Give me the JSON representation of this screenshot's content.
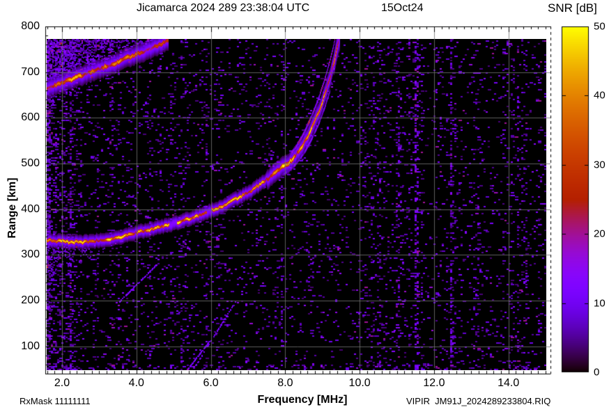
{
  "header": {
    "title_left": "Jicamarca 2024 289 23:38:04 UTC",
    "title_right": "15Oct24",
    "colorbar_title": "SNR [dB]"
  },
  "footer": {
    "rx_mask": "RxMask 11111111",
    "file_info": "VIPIR  JM91J_2024289233804.RIQ"
  },
  "axes": {
    "x": {
      "label": "Frequency [MHz]",
      "tick_labels": [
        "2.0",
        "4.0",
        "6.0",
        "8.0",
        "10.0",
        "12.0",
        "14.0"
      ],
      "tick_values": [
        2,
        4,
        6,
        8,
        10,
        12,
        14
      ],
      "minor_step": 0.2
    },
    "y": {
      "label": "Range [km]",
      "tick_labels": [
        "100",
        "200",
        "300",
        "400",
        "500",
        "600",
        "700",
        "800"
      ],
      "tick_values": [
        100,
        200,
        300,
        400,
        500,
        600,
        700,
        800
      ],
      "minor_step": 20
    }
  },
  "colorbar": {
    "tick_labels": [
      "0",
      "10",
      "20",
      "30",
      "40",
      "50"
    ],
    "tick_values": [
      0,
      10,
      20,
      30,
      40,
      50
    ],
    "min": 0,
    "max": 50,
    "palette_name": "gnuplot rgbformulae 7,5,15 (black-violet-red-orange-yellow)",
    "key_colors": {
      "0": "#000000",
      "10": "#7202f2",
      "20": "#a11096",
      "30": "#c63700",
      "40": "#e48300",
      "50": "#ffff00"
    }
  },
  "chart_data": {
    "type": "heatmap",
    "title": "Jicamarca 2024 289 23:38:04 UTC  15Oct24",
    "xlabel": "Frequency [MHz]",
    "ylabel": "Range [km]",
    "value_label": "SNR [dB]",
    "xlim": [
      1.55,
      15.13
    ],
    "ylim": [
      40,
      800
    ],
    "zlim": [
      0,
      50
    ],
    "grid": true,
    "background_snr_db": 0,
    "series": [
      {
        "name": "F-region echo trace",
        "kind": "trace",
        "peak_snr_db": 42,
        "points_f_mhz_range_km": [
          [
            1.58,
            334
          ],
          [
            1.8,
            331
          ],
          [
            2.0,
            330
          ],
          [
            2.2,
            329
          ],
          [
            2.5,
            329
          ],
          [
            2.8,
            331
          ],
          [
            3.1,
            334
          ],
          [
            3.4,
            338
          ],
          [
            3.7,
            343
          ],
          [
            4.0,
            349
          ],
          [
            4.3,
            355
          ],
          [
            4.6,
            361
          ],
          [
            4.9,
            367
          ],
          [
            5.2,
            374
          ],
          [
            5.5,
            382
          ],
          [
            5.8,
            391
          ],
          [
            6.1,
            401
          ],
          [
            6.4,
            412
          ],
          [
            6.7,
            424
          ],
          [
            7.0,
            438
          ],
          [
            7.3,
            454
          ],
          [
            7.6,
            472
          ],
          [
            7.9,
            492
          ],
          [
            8.1,
            503
          ],
          [
            8.3,
            522
          ],
          [
            8.5,
            546
          ],
          [
            8.7,
            578
          ],
          [
            8.9,
            615
          ],
          [
            9.05,
            650
          ],
          [
            9.2,
            690
          ],
          [
            9.3,
            722
          ],
          [
            9.4,
            760
          ],
          [
            9.47,
            778
          ]
        ],
        "gaps_f_mhz": [
          [
            4.88,
            5.08
          ],
          [
            5.88,
            6.02
          ]
        ],
        "critical_frequency_mhz": 9.47
      },
      {
        "name": "second-hop echo trace",
        "kind": "trace",
        "peak_snr_db": 38,
        "points_f_mhz_range_km": [
          [
            1.58,
            664
          ],
          [
            2.0,
            678
          ],
          [
            2.4,
            690
          ],
          [
            2.8,
            702
          ],
          [
            3.2,
            714
          ],
          [
            3.6,
            727
          ],
          [
            4.0,
            740
          ],
          [
            4.4,
            753
          ],
          [
            4.86,
            770
          ]
        ]
      },
      {
        "name": "spread noise cloud above second hop",
        "kind": "region",
        "snr_db_range": [
          4,
          15
        ],
        "f_mhz_range": [
          1.58,
          4.95
        ],
        "range_km_range": [
          655,
          773
        ]
      },
      {
        "name": "range spread below F trace",
        "kind": "region",
        "snr_db_range": [
          4,
          13
        ],
        "f_mhz_range": [
          1.58,
          3.9
        ],
        "range_km_range": [
          270,
          330
        ]
      },
      {
        "name": "RFI vertical stripes",
        "kind": "vertical-stripes",
        "snr_db_range": [
          3,
          20
        ],
        "f_mhz": [
          2.25,
          2.9,
          3.3,
          4.35,
          5.3,
          6.2,
          10.5,
          11.0,
          11.5,
          12.5,
          13.1,
          14.4
        ],
        "strongest_f_mhz": 11.5
      },
      {
        "name": "oblique interference streaks",
        "kind": "diagonal-streaks",
        "snr_db_range": [
          8,
          13
        ],
        "segments_f_mhz_range_km": [
          [
            [
              3.52,
              198
            ],
            [
              4.51,
              278
            ]
          ],
          [
            [
              5.45,
              42
            ],
            [
              6.64,
              198
            ]
          ],
          [
            [
              5.26,
              40
            ],
            [
              5.95,
              112
            ]
          ]
        ]
      },
      {
        "name": "background speckle noise",
        "kind": "noise",
        "snr_db_range": [
          3,
          15
        ],
        "denser_below_f_mhz": 2.5
      }
    ]
  }
}
